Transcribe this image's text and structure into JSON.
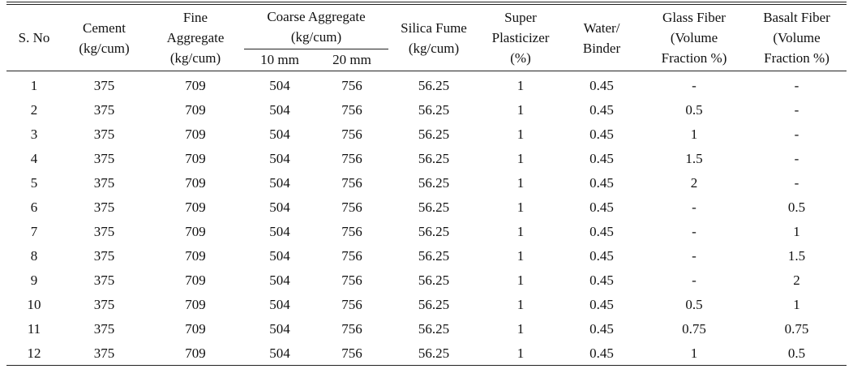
{
  "table": {
    "headers": {
      "sno": "S. No",
      "cement": [
        "Cement",
        "(kg/cum)"
      ],
      "fine": [
        "Fine",
        "Aggregate",
        "(kg/cum)"
      ],
      "coarse": [
        "Coarse Aggregate",
        "(kg/cum)"
      ],
      "coarse_10": "10 mm",
      "coarse_20": "20 mm",
      "silica": [
        "Silica Fume",
        "(kg/cum)"
      ],
      "super": [
        "Super",
        "Plasticizer",
        "(%)"
      ],
      "wb": [
        "Water/",
        "Binder"
      ],
      "glass": [
        "Glass Fiber",
        "(Volume",
        "Fraction %)"
      ],
      "basalt": [
        "Basalt Fiber",
        "(Volume",
        "Fraction %)"
      ]
    },
    "rows": [
      [
        "1",
        "375",
        "709",
        "504",
        "756",
        "56.25",
        "1",
        "0.45",
        "-",
        "-"
      ],
      [
        "2",
        "375",
        "709",
        "504",
        "756",
        "56.25",
        "1",
        "0.45",
        "0.5",
        "-"
      ],
      [
        "3",
        "375",
        "709",
        "504",
        "756",
        "56.25",
        "1",
        "0.45",
        "1",
        "-"
      ],
      [
        "4",
        "375",
        "709",
        "504",
        "756",
        "56.25",
        "1",
        "0.45",
        "1.5",
        "-"
      ],
      [
        "5",
        "375",
        "709",
        "504",
        "756",
        "56.25",
        "1",
        "0.45",
        "2",
        "-"
      ],
      [
        "6",
        "375",
        "709",
        "504",
        "756",
        "56.25",
        "1",
        "0.45",
        "-",
        "0.5"
      ],
      [
        "7",
        "375",
        "709",
        "504",
        "756",
        "56.25",
        "1",
        "0.45",
        "-",
        "1"
      ],
      [
        "8",
        "375",
        "709",
        "504",
        "756",
        "56.25",
        "1",
        "0.45",
        "-",
        "1.5"
      ],
      [
        "9",
        "375",
        "709",
        "504",
        "756",
        "56.25",
        "1",
        "0.45",
        "-",
        "2"
      ],
      [
        "10",
        "375",
        "709",
        "504",
        "756",
        "56.25",
        "1",
        "0.45",
        "0.5",
        "1"
      ],
      [
        "11",
        "375",
        "709",
        "504",
        "756",
        "56.25",
        "1",
        "0.45",
        "0.75",
        "0.75"
      ],
      [
        "12",
        "375",
        "709",
        "504",
        "756",
        "56.25",
        "1",
        "0.45",
        "1",
        "0.5"
      ]
    ]
  }
}
